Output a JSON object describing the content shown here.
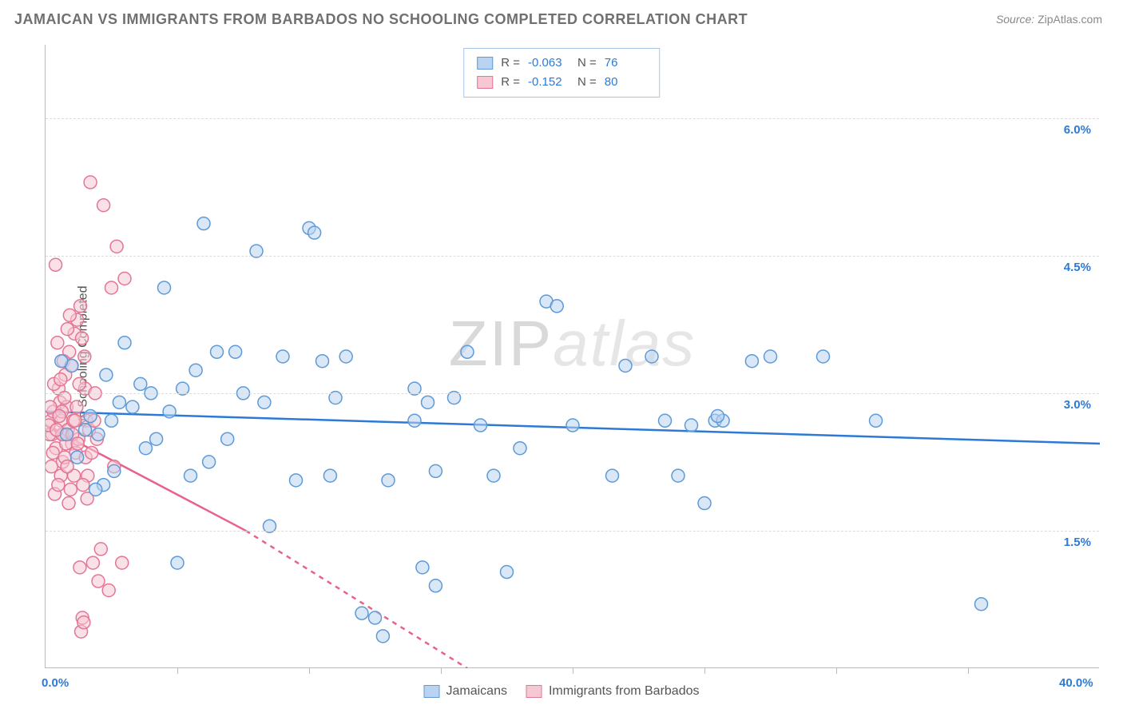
{
  "title": "JAMAICAN VS IMMIGRANTS FROM BARBADOS NO SCHOOLING COMPLETED CORRELATION CHART",
  "source": {
    "label": "Source:",
    "name": "ZipAtlas.com"
  },
  "watermark": {
    "part1": "ZIP",
    "part2": "atlas"
  },
  "y_axis_title": "No Schooling Completed",
  "plot": {
    "xlim": [
      0,
      40
    ],
    "ylim": [
      0,
      6.8
    ],
    "x_origin_label": "0.0%",
    "x_max_label": "40.0%",
    "x_origin_color": "#2d7ad6",
    "x_max_color": "#2d7ad6",
    "y_ticks": [
      {
        "v": 1.5,
        "label": "1.5%",
        "color": "#2d7ad6"
      },
      {
        "v": 3.0,
        "label": "3.0%",
        "color": "#2d7ad6"
      },
      {
        "v": 4.5,
        "label": "4.5%",
        "color": "#2d7ad6"
      },
      {
        "v": 6.0,
        "label": "6.0%",
        "color": "#2d7ad6"
      }
    ],
    "x_minor_ticks_at": [
      5,
      10,
      15,
      20,
      25,
      30,
      35
    ],
    "background_color": "#ffffff",
    "grid_color": "#dcdcdc",
    "marker_radius": 8,
    "marker_opacity": 0.55
  },
  "series": [
    {
      "name": "Jamaicans",
      "color_fill": "#b9d3f0",
      "color_stroke": "#5d9ad8",
      "line_color": "#2d7ad6",
      "R": "-0.063",
      "N": "76",
      "regression": {
        "x1": 0,
        "y1": 2.8,
        "x2": 40,
        "y2": 2.45
      },
      "points": [
        [
          3.0,
          3.55
        ],
        [
          1.5,
          2.6
        ],
        [
          2.0,
          2.55
        ],
        [
          2.5,
          2.7
        ],
        [
          4.0,
          3.0
        ],
        [
          4.5,
          4.15
        ],
        [
          5.5,
          2.1
        ],
        [
          6.0,
          4.85
        ],
        [
          6.5,
          3.45
        ],
        [
          6.2,
          2.25
        ],
        [
          7.5,
          3.0
        ],
        [
          8.0,
          4.55
        ],
        [
          8.3,
          2.9
        ],
        [
          8.5,
          1.55
        ],
        [
          9.0,
          3.4
        ],
        [
          9.5,
          2.05
        ],
        [
          10.0,
          4.8
        ],
        [
          10.2,
          4.75
        ],
        [
          10.5,
          3.35
        ],
        [
          10.8,
          2.1
        ],
        [
          11.0,
          2.95
        ],
        [
          12.5,
          0.55
        ],
        [
          12.8,
          0.35
        ],
        [
          13.0,
          2.05
        ],
        [
          14.0,
          3.05
        ],
        [
          14.5,
          2.9
        ],
        [
          14.8,
          2.15
        ],
        [
          14.3,
          1.1
        ],
        [
          14.0,
          2.7
        ],
        [
          16.5,
          2.65
        ],
        [
          17.0,
          2.1
        ],
        [
          17.5,
          1.05
        ],
        [
          18.0,
          2.4
        ],
        [
          19.0,
          4.0
        ],
        [
          19.4,
          3.95
        ],
        [
          20.0,
          2.65
        ],
        [
          21.5,
          2.1
        ],
        [
          22.0,
          3.3
        ],
        [
          23.0,
          3.4
        ],
        [
          23.5,
          2.7
        ],
        [
          24.0,
          2.1
        ],
        [
          24.5,
          2.65
        ],
        [
          25.0,
          1.8
        ],
        [
          25.4,
          2.7
        ],
        [
          25.7,
          2.7
        ],
        [
          26.8,
          3.35
        ],
        [
          25.5,
          2.75
        ],
        [
          27.5,
          3.4
        ],
        [
          29.5,
          3.4
        ],
        [
          31.5,
          2.7
        ],
        [
          35.5,
          0.7
        ],
        [
          5.0,
          1.15
        ],
        [
          12.0,
          0.6
        ],
        [
          14.8,
          0.9
        ],
        [
          3.8,
          2.4
        ],
        [
          5.2,
          3.05
        ],
        [
          6.9,
          2.5
        ],
        [
          1.0,
          3.3
        ],
        [
          2.2,
          2.0
        ],
        [
          2.8,
          2.9
        ],
        [
          3.6,
          3.1
        ],
        [
          4.7,
          2.8
        ],
        [
          0.8,
          2.55
        ],
        [
          1.2,
          2.3
        ],
        [
          1.7,
          2.75
        ],
        [
          2.3,
          3.2
        ],
        [
          2.6,
          2.15
        ],
        [
          3.3,
          2.85
        ],
        [
          1.9,
          1.95
        ],
        [
          0.6,
          3.35
        ],
        [
          4.2,
          2.5
        ],
        [
          5.7,
          3.25
        ],
        [
          7.2,
          3.45
        ],
        [
          11.4,
          3.4
        ],
        [
          16.0,
          3.45
        ],
        [
          15.5,
          2.95
        ]
      ]
    },
    {
      "name": "Immigrants from Barbados",
      "color_fill": "#f6c8d4",
      "color_stroke": "#e37694",
      "line_color": "#e8628b",
      "R": "-0.152",
      "N": "80",
      "regression": {
        "x1": 0,
        "y1": 2.65,
        "x2": 7.6,
        "y2": 1.5,
        "x2_dash": 16.0,
        "y2_dash": 0.0
      },
      "points": [
        [
          0.2,
          2.7
        ],
        [
          0.3,
          2.8
        ],
        [
          0.25,
          2.55
        ],
        [
          0.4,
          2.4
        ],
        [
          0.5,
          3.05
        ],
        [
          0.55,
          2.9
        ],
        [
          0.6,
          2.7
        ],
        [
          0.65,
          2.25
        ],
        [
          0.7,
          2.55
        ],
        [
          0.75,
          3.2
        ],
        [
          0.8,
          2.85
        ],
        [
          0.85,
          2.6
        ],
        [
          0.9,
          3.45
        ],
        [
          0.95,
          1.95
        ],
        [
          1.0,
          2.45
        ],
        [
          1.05,
          2.7
        ],
        [
          1.1,
          3.65
        ],
        [
          1.15,
          2.35
        ],
        [
          1.2,
          3.8
        ],
        [
          1.25,
          2.5
        ],
        [
          1.3,
          1.1
        ],
        [
          1.35,
          0.4
        ],
        [
          1.4,
          0.55
        ],
        [
          1.45,
          0.5
        ],
        [
          1.5,
          3.05
        ],
        [
          1.55,
          2.7
        ],
        [
          0.35,
          1.9
        ],
        [
          0.45,
          3.55
        ],
        [
          1.7,
          5.3
        ],
        [
          2.2,
          5.05
        ],
        [
          2.7,
          4.6
        ],
        [
          2.5,
          4.15
        ],
        [
          3.0,
          4.25
        ],
        [
          1.8,
          1.15
        ],
        [
          2.0,
          0.95
        ],
        [
          2.1,
          1.3
        ],
        [
          2.4,
          0.85
        ],
        [
          2.9,
          1.15
        ],
        [
          2.6,
          2.2
        ],
        [
          1.95,
          2.5
        ],
        [
          0.58,
          2.1
        ],
        [
          0.62,
          2.8
        ],
        [
          1.6,
          2.1
        ],
        [
          1.65,
          2.6
        ],
        [
          0.68,
          3.35
        ],
        [
          0.72,
          2.95
        ],
        [
          0.78,
          2.45
        ],
        [
          0.32,
          3.1
        ],
        [
          0.28,
          2.35
        ],
        [
          0.22,
          2.2
        ],
        [
          0.15,
          2.55
        ],
        [
          0.18,
          2.85
        ],
        [
          0.12,
          2.65
        ],
        [
          0.48,
          2.0
        ],
        [
          0.52,
          2.75
        ],
        [
          0.88,
          1.8
        ],
        [
          1.08,
          2.1
        ],
        [
          1.18,
          2.85
        ],
        [
          1.28,
          3.1
        ],
        [
          0.92,
          3.85
        ],
        [
          1.32,
          3.95
        ],
        [
          1.38,
          3.6
        ],
        [
          0.38,
          4.4
        ],
        [
          0.83,
          3.7
        ],
        [
          0.98,
          3.3
        ],
        [
          1.48,
          3.4
        ],
        [
          1.52,
          2.3
        ],
        [
          1.58,
          1.85
        ],
        [
          1.75,
          2.35
        ],
        [
          1.85,
          2.7
        ],
        [
          1.42,
          2.0
        ],
        [
          0.63,
          2.55
        ],
        [
          0.73,
          2.3
        ],
        [
          0.42,
          2.6
        ],
        [
          0.57,
          3.15
        ],
        [
          0.82,
          2.2
        ],
        [
          1.02,
          2.55
        ],
        [
          1.12,
          2.7
        ],
        [
          1.22,
          2.45
        ],
        [
          1.88,
          3.0
        ]
      ]
    }
  ],
  "stats_value_color": "#2d7ad6",
  "legend": {
    "items": [
      {
        "label": "Jamaicans",
        "fill": "#b9d3f0",
        "stroke": "#5d9ad8"
      },
      {
        "label": "Immigrants from Barbados",
        "fill": "#f6c8d4",
        "stroke": "#e37694"
      }
    ]
  }
}
